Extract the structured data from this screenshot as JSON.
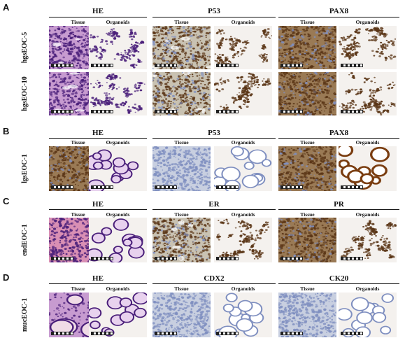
{
  "panels": [
    {
      "letter": "A",
      "groups": [
        {
          "title": "HE",
          "left": "Tissue",
          "right": "Organoids"
        },
        {
          "title": "P53",
          "left": "Tissue",
          "right": "Organoids"
        },
        {
          "title": "PAX8",
          "left": "Tissue",
          "right": "Organoids"
        }
      ],
      "rows": [
        {
          "label": "hgsEOC-5",
          "tiles": [
            "he-tissue-dense",
            "he-org-sparse",
            "ihc-tissue-mixed",
            "ihc-org-sparse",
            "ihc-tissue-dark",
            "ihc-org-dark"
          ]
        },
        {
          "label": "hgsEOC-10",
          "tiles": [
            "he-tissue-dense",
            "he-org-dense",
            "ihc-tissue-mixed",
            "ihc-org-dark",
            "ihc-tissue-dark",
            "ihc-org-dark"
          ]
        }
      ]
    },
    {
      "letter": "B",
      "groups": [
        {
          "title": "HE",
          "left": "Tissue",
          "right": "Organoids"
        },
        {
          "title": "P53",
          "left": "Tissue",
          "right": "Organoids"
        },
        {
          "title": "PAX8",
          "left": "Tissue",
          "right": "Organoids"
        }
      ],
      "rows": [
        {
          "label": "lgsEOC-1",
          "tiles": [
            "ihc-tissue-dark",
            "he-org-rings",
            "ihc-tissue-pale",
            "ihc-org-rings-pale",
            "ihc-tissue-dark",
            "ihc-org-rings-dark"
          ]
        }
      ]
    },
    {
      "letter": "C",
      "groups": [
        {
          "title": "HE",
          "left": "Tissue",
          "right": "Organoids"
        },
        {
          "title": "ER",
          "left": "Tissue",
          "right": "Organoids"
        },
        {
          "title": "PR",
          "left": "Tissue",
          "right": "Organoids"
        }
      ],
      "rows": [
        {
          "label": "endEOC-1",
          "tiles": [
            "he-tissue-pink",
            "he-org-cluster",
            "ihc-tissue-mixed",
            "ihc-org-sparse",
            "ihc-tissue-dark",
            "ihc-org-sparse"
          ]
        }
      ]
    },
    {
      "letter": "D",
      "groups": [
        {
          "title": "HE",
          "left": "Tissue",
          "right": "Organoids"
        },
        {
          "title": "CDX2",
          "left": "Tissue",
          "right": "Organoids"
        },
        {
          "title": "CK20",
          "left": "Tissue",
          "right": "Organoids"
        }
      ],
      "rows": [
        {
          "label": "mucEOC-1",
          "tiles": [
            "he-tissue-glands",
            "he-org-glands",
            "ihc-tissue-pale",
            "ihc-org-rings-pale",
            "ihc-tissue-pale",
            "ihc-org-rings-pale"
          ]
        }
      ]
    }
  ],
  "colors": {
    "he_bg": "#c79bd0",
    "he_nuc": "#4a1f7a",
    "he_pink": "#d98fb4",
    "ihc_bg": "#c9c2b2",
    "ihc_brown": "#5a3516",
    "ihc_blue": "#7f8fc0",
    "org_bg": "#f4f1ee"
  }
}
